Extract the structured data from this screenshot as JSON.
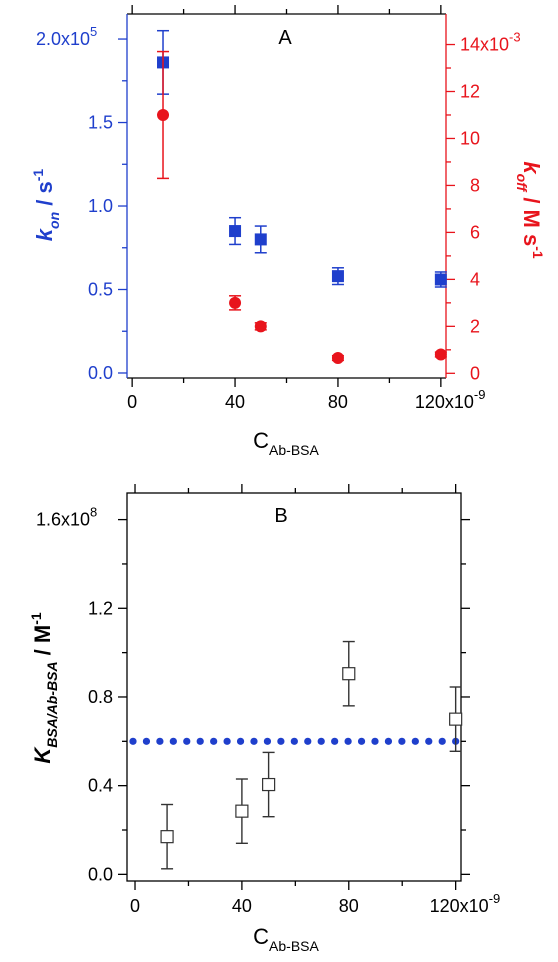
{
  "chart_data": [
    {
      "type": "scatter",
      "panel_label": "A",
      "xlabel_main": "C",
      "xlabel_sub": "Ab-BSA",
      "x_ticks": [
        "0",
        "40",
        "80",
        "120x10"
      ],
      "x_exponent": "-9",
      "xlim": [
        -2e-09,
        1.22e-07
      ],
      "y_left": {
        "label_main": "k",
        "label_sub": "on",
        "label_rest": " / s",
        "label_sup": "-1",
        "color": "#1f3fcc",
        "ticks": [
          "0.0",
          "0.5",
          "1.0",
          "1.5",
          "2.0x10"
        ],
        "tick_values": [
          0,
          50000.0,
          100000.0,
          150000.0,
          200000.0
        ],
        "exponent": "5",
        "ylim": [
          -3000,
          215000
        ]
      },
      "y_right": {
        "label_main": "k",
        "label_sub": "off",
        "label_rest": " / M s",
        "label_sup": "-1",
        "color": "#e8141c",
        "ticks": [
          "0",
          "2",
          "4",
          "6",
          "8",
          "10",
          "12",
          "14x10"
        ],
        "tick_values": [
          0,
          0.002,
          0.004,
          0.006,
          0.008,
          0.01,
          0.012,
          0.014
        ],
        "exponent": "-3",
        "ylim": [
          -0.0002,
          0.0153
        ]
      },
      "series": [
        {
          "axis": "left",
          "marker": "square-filled",
          "color": "#1f3fcc",
          "x": [
            1.2e-08,
            4e-08,
            5e-08,
            8e-08,
            1.2e-07
          ],
          "y": [
            186000,
            85000,
            80000,
            58000,
            56000
          ],
          "err": [
            19000,
            8000,
            8000,
            5000,
            4500
          ]
        },
        {
          "axis": "right",
          "marker": "circle-filled",
          "color": "#e8141c",
          "x": [
            1.2e-08,
            4e-08,
            5e-08,
            8e-08,
            1.2e-07
          ],
          "y": [
            0.011,
            0.003,
            0.002,
            0.00065,
            0.0008
          ],
          "err": [
            0.0027,
            0.0003,
            0.00015,
            0.0001,
            0.0001
          ]
        }
      ]
    },
    {
      "type": "scatter",
      "panel_label": "B",
      "xlabel_main": "C",
      "xlabel_sub": "Ab-BSA",
      "x_ticks": [
        "0",
        "40",
        "80",
        "120x10"
      ],
      "x_exponent": "-9",
      "xlim": [
        -3e-09,
        1.22e-07
      ],
      "y_left": {
        "label_main": "K",
        "label_sub": "BSA/Ab-BSA",
        "label_rest": " / M",
        "label_sup": "-1",
        "color": "#000000",
        "ticks": [
          "0.0",
          "0.4",
          "0.8",
          "1.2",
          "1.6x10"
        ],
        "tick_values": [
          0,
          40000000.0,
          80000000.0,
          120000000.0,
          160000000.0
        ],
        "exponent": "8",
        "ylim": [
          -3000000.0,
          172000000.0
        ]
      },
      "series": [
        {
          "axis": "left",
          "marker": "square-open",
          "color": "#555555",
          "x": [
            1.2e-08,
            4e-08,
            5e-08,
            8e-08,
            1.2e-07
          ],
          "y": [
            17000000.0,
            28500000.0,
            40500000.0,
            90500000.0,
            70000000.0
          ],
          "err": [
            14500000.0,
            14500000.0,
            14500000.0,
            14500000.0,
            14500000.0
          ]
        },
        {
          "marker": "dotted-line",
          "color": "#1f3fcc",
          "x": [
            -3e-09,
            1.2e-07
          ],
          "y": [
            60000000.0,
            60000000.0
          ]
        }
      ]
    }
  ]
}
